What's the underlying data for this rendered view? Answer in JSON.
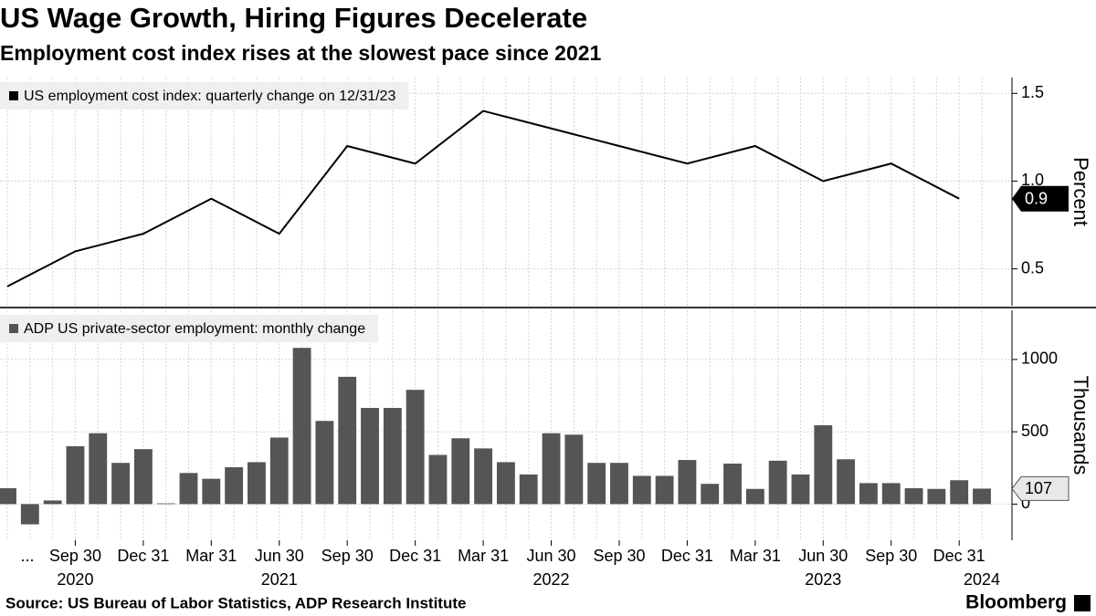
{
  "title": "US Wage Growth, Hiring Figures Decelerate",
  "subtitle": "Employment cost index rises at the slowest pace since 2021",
  "source": "Source: US Bureau of Labor Statistics, ADP Research Institute",
  "brand": "Bloomberg",
  "chart_data": [
    {
      "type": "line",
      "axis_label": "Percent",
      "series": [
        {
          "name": "US employment cost index: quarterly change on 12/31/23",
          "color": "#000000",
          "x": [
            "2020-06-30",
            "2020-09-30",
            "2020-12-31",
            "2021-03-31",
            "2021-06-30",
            "2021-09-30",
            "2021-12-31",
            "2022-03-31",
            "2022-06-30",
            "2022-09-30",
            "2022-12-31",
            "2023-03-31",
            "2023-06-30",
            "2023-09-30",
            "2023-12-31"
          ],
          "values": [
            0.4,
            0.6,
            0.7,
            0.9,
            0.7,
            1.2,
            1.1,
            1.4,
            1.3,
            1.2,
            1.1,
            1.2,
            1.0,
            1.1,
            0.9
          ]
        }
      ],
      "xlim": [
        "2020-06",
        "2024-01"
      ],
      "ylim": [
        0.29,
        1.59
      ],
      "yticks": [
        0.5,
        {
          "value": 1.0,
          "label": "1.0"
        },
        1.5
      ],
      "grid": true
    },
    {
      "type": "bar",
      "axis_label": "Thousands",
      "series": [
        {
          "name": "ADP US private-sector employment: monthly change",
          "color": "#555555",
          "x": [
            "2020-06",
            "2020-07",
            "2020-08",
            "2020-09",
            "2020-10",
            "2020-11",
            "2020-12",
            "2021-01",
            "2021-02",
            "2021-03",
            "2021-04",
            "2021-05",
            "2021-06",
            "2021-07",
            "2021-08",
            "2021-09",
            "2021-10",
            "2021-11",
            "2021-12",
            "2022-01",
            "2022-02",
            "2022-03",
            "2022-04",
            "2022-05",
            "2022-06",
            "2022-07",
            "2022-08",
            "2022-09",
            "2022-10",
            "2022-11",
            "2022-12",
            "2023-01",
            "2023-02",
            "2023-03",
            "2023-04",
            "2023-05",
            "2023-06",
            "2023-07",
            "2023-08",
            "2023-09",
            "2023-10",
            "2023-11",
            "2023-12",
            "2024-01"
          ],
          "values": [
            110,
            -140,
            25,
            400,
            490,
            285,
            380,
            5,
            215,
            175,
            255,
            290,
            460,
            1080,
            575,
            880,
            665,
            665,
            790,
            340,
            455,
            385,
            290,
            205,
            490,
            480,
            285,
            285,
            195,
            195,
            305,
            140,
            280,
            105,
            300,
            205,
            545,
            310,
            145,
            145,
            110,
            105,
            165,
            107
          ]
        }
      ],
      "xlim": [
        "2020-06",
        "2024-01"
      ],
      "ylim": [
        -250,
        1340
      ],
      "yticks": [
        0,
        500,
        1000
      ],
      "x_prefix": "...",
      "xticks": [
        {
          "value": "2020-09-30",
          "label": "Sep 30"
        },
        {
          "value": "2020-12-31",
          "label": "Dec 31"
        },
        {
          "value": "2021-03-31",
          "label": "Mar 31"
        },
        {
          "value": "2021-06-30",
          "label": "Jun 30"
        },
        {
          "value": "2021-09-30",
          "label": "Sep 30"
        },
        {
          "value": "2021-12-31",
          "label": "Dec 31"
        },
        {
          "value": "2022-03-31",
          "label": "Mar 31"
        },
        {
          "value": "2022-06-30",
          "label": "Jun 30"
        },
        {
          "value": "2022-09-30",
          "label": "Sep 30"
        },
        {
          "value": "2022-12-31",
          "label": "Dec 31"
        },
        {
          "value": "2023-03-31",
          "label": "Mar 31"
        },
        {
          "value": "2023-06-30",
          "label": "Jun 30"
        },
        {
          "value": "2023-09-30",
          "label": "Sep 30"
        },
        {
          "value": "2023-12-31",
          "label": "Dec 31"
        }
      ],
      "year_ticks": [
        {
          "value": "2020-09-30",
          "label": "2020"
        },
        {
          "value": "2021-06-30",
          "label": "2021"
        },
        {
          "value": "2022-06-30",
          "label": "2022"
        },
        {
          "value": "2023-06-30",
          "label": "2023"
        },
        {
          "value": "2024-01-31",
          "label": "2024"
        }
      ],
      "grid": true
    }
  ]
}
